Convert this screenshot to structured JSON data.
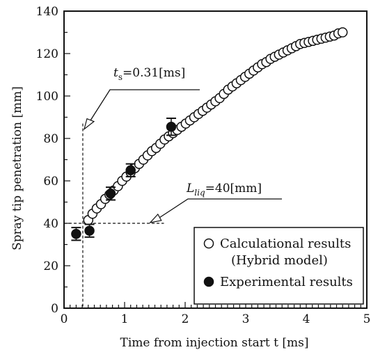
{
  "chart_data": {
    "type": "scatter",
    "xlabel": "Time from injection start t [ms]",
    "ylabel": "Spray tip penetration [mm]",
    "xlim": [
      0,
      5
    ],
    "ylim": [
      0,
      140
    ],
    "x_ticks": [
      "0",
      "1",
      "2",
      "3",
      "4",
      "5"
    ],
    "y_ticks": [
      "0",
      "20",
      "40",
      "60",
      "80",
      "100",
      "120",
      "140"
    ],
    "legend": {
      "placement": "bottom-right",
      "entries": [
        {
          "marker": "open-circle",
          "label": "Calculational results",
          "sublabel": "(Hybrid model)"
        },
        {
          "marker": "filled-circle",
          "label": "Experimental results"
        }
      ]
    },
    "annotations": [
      {
        "id": "ts",
        "prefix": "t",
        "sub": "s",
        "text": "=0.31[ms]",
        "x": 0.31,
        "y": 87
      },
      {
        "id": "lliq",
        "prefix": "L",
        "sub": "liq",
        "text": "=40[mm]",
        "x": 1.4,
        "y": 40
      }
    ],
    "series": [
      {
        "name": "Calculational results (Hybrid model)",
        "marker": "open-circle",
        "x": [
          0.4,
          0.47,
          0.54,
          0.61,
          0.68,
          0.75,
          0.82,
          0.89,
          0.96,
          1.03,
          1.1,
          1.17,
          1.24,
          1.31,
          1.38,
          1.45,
          1.52,
          1.59,
          1.66,
          1.73,
          1.8,
          1.87,
          1.94,
          2.01,
          2.08,
          2.15,
          2.22,
          2.29,
          2.36,
          2.43,
          2.5,
          2.57,
          2.64,
          2.71,
          2.78,
          2.85,
          2.92,
          2.99,
          3.06,
          3.13,
          3.2,
          3.27,
          3.34,
          3.41,
          3.48,
          3.55,
          3.62,
          3.69,
          3.76,
          3.83,
          3.9,
          3.97,
          4.04,
          4.11,
          4.18,
          4.25,
          4.32,
          4.39,
          4.46,
          4.53,
          4.6
        ],
        "y": [
          41.5,
          44.5,
          47,
          49,
          51.5,
          53.5,
          55.5,
          57.5,
          60,
          62,
          64,
          66,
          68,
          70,
          72,
          74,
          75.5,
          77.5,
          79.5,
          81,
          82.5,
          84,
          85.5,
          87,
          88.5,
          90,
          91.5,
          93,
          94.5,
          96,
          97.5,
          99,
          101,
          103,
          104.5,
          106,
          107.5,
          109,
          110.5,
          112,
          113.5,
          115,
          116,
          117.5,
          118.5,
          119.5,
          120.5,
          121.5,
          122.5,
          123.5,
          124.5,
          125,
          125.5,
          126,
          126.5,
          127,
          127.5,
          128,
          128.5,
          129.5,
          130
        ]
      },
      {
        "name": "Experimental results",
        "marker": "filled-circle",
        "x": [
          0.2,
          0.42,
          0.77,
          1.1,
          1.77
        ],
        "y": [
          35,
          36.5,
          54,
          65,
          85.5
        ],
        "error": [
          3,
          3,
          3,
          3,
          4
        ]
      }
    ]
  }
}
